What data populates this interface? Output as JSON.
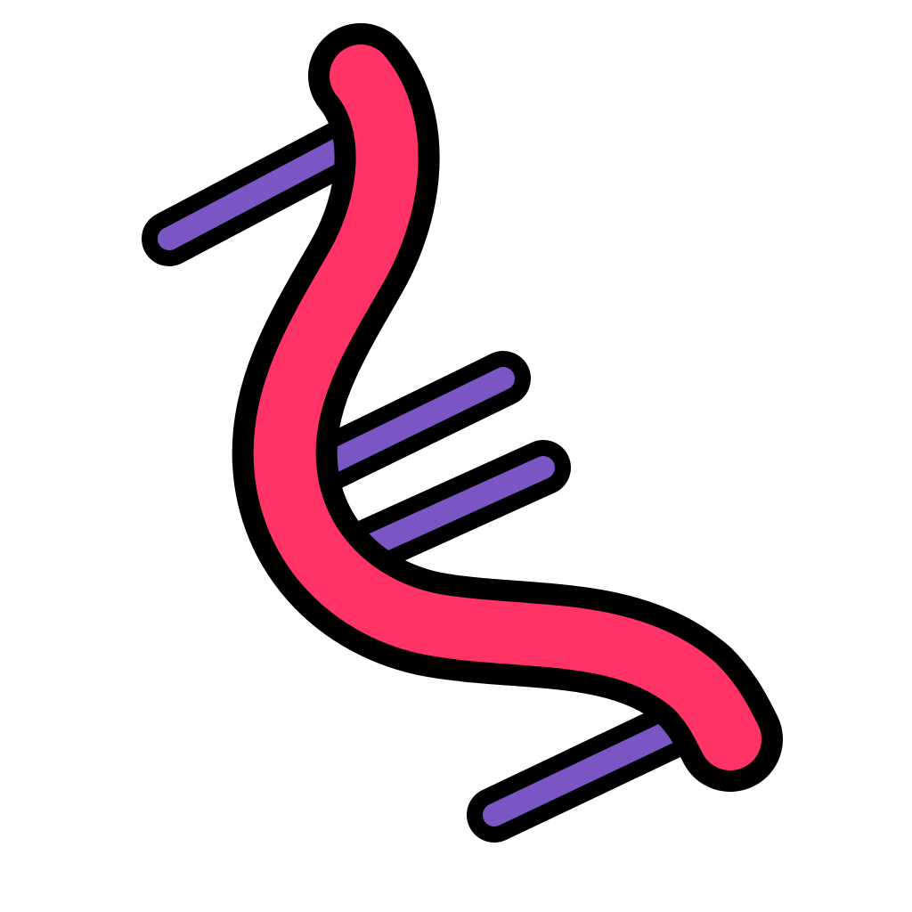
{
  "icon": {
    "name": "dna-strand-icon",
    "colors": {
      "background": "#ffffff",
      "outline": "#000000",
      "backbone": "#ff3366",
      "rungs": "#7a55c4"
    }
  }
}
